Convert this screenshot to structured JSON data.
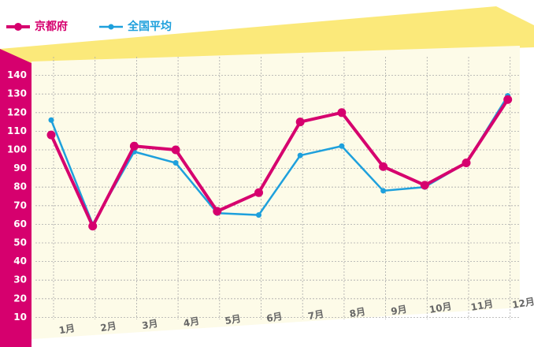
{
  "chart_data": {
    "type": "line",
    "categories": [
      "1月",
      "2月",
      "3月",
      "4月",
      "5月",
      "6月",
      "7月",
      "8月",
      "9月",
      "10月",
      "11月",
      "12月"
    ],
    "series": [
      {
        "name": "京都府",
        "color": "#d6006e",
        "values": [
          108,
          59,
          102,
          100,
          67,
          77,
          115,
          120,
          91,
          81,
          93,
          127
        ]
      },
      {
        "name": "全国平均",
        "color": "#1ea0dc",
        "values": [
          116,
          60,
          99,
          93,
          66,
          65,
          97,
          102,
          78,
          80,
          93,
          129
        ]
      }
    ],
    "ylim": [
      0,
      150
    ],
    "yticks": [
      10,
      20,
      30,
      40,
      50,
      60,
      70,
      80,
      90,
      100,
      110,
      120,
      130,
      140
    ],
    "grid": true
  }
}
